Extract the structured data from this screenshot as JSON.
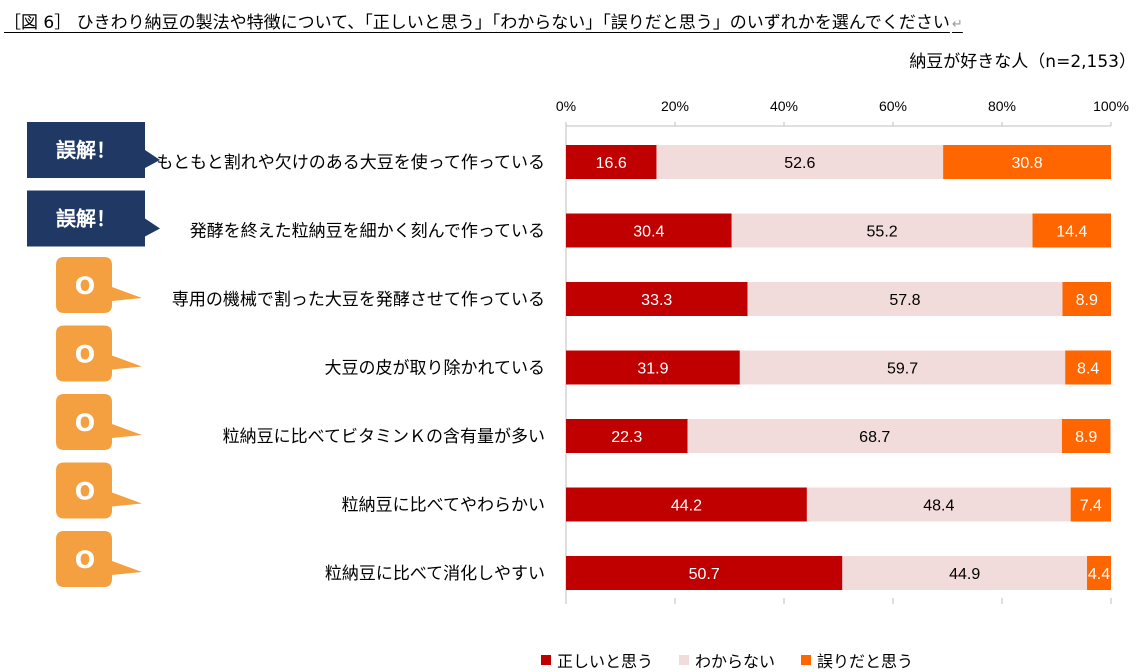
{
  "title": "［図 6］ ひきわり納豆の製法や特徴について、「正しいと思う」「わからない」「誤りだと思う」のいずれかを選んでください",
  "return_mark": "↵",
  "sample_label": "納豆が好きな人（n=2,153）",
  "badges": {
    "wrong_label": "誤解！",
    "correct_label": "O",
    "wrong_color": "#1F3864",
    "correct_color": "#F4A040"
  },
  "chart_data": {
    "type": "bar",
    "orientation": "horizontal",
    "stacked": true,
    "percent": true,
    "xlim": [
      0,
      100
    ],
    "x_ticks": [
      "0%",
      "20%",
      "40%",
      "60%",
      "80%",
      "100%"
    ],
    "x_tick_values": [
      0,
      20,
      40,
      60,
      80,
      100
    ],
    "grid": false,
    "legend_position": "bottom",
    "categories": [
      "もともと割れや欠けのある大豆を使って作っている",
      "発酵を終えた粒納豆を細かく刻んで作っている",
      "専用の機械で割った大豆を発酵させて作っている",
      "大豆の皮が取り除かれている",
      "粒納豆に比べてビタミンＫの含有量が多い",
      "粒納豆に比べてやわらかい",
      "粒納豆に比べて消化しやすい"
    ],
    "badges": [
      "wrong",
      "wrong",
      "correct",
      "correct",
      "correct",
      "correct",
      "correct"
    ],
    "series": [
      {
        "name": "正しいと思う",
        "color": "#C00000",
        "label_color": "#ffffff",
        "values": [
          16.6,
          30.4,
          33.3,
          31.9,
          22.3,
          44.2,
          50.7
        ]
      },
      {
        "name": "わからない",
        "color": "#F2DCDB",
        "label_color": "#000000",
        "values": [
          52.6,
          55.2,
          57.8,
          59.7,
          68.7,
          48.4,
          44.9
        ]
      },
      {
        "name": "誤りだと思う",
        "color": "#FF6600",
        "label_color": "#ffffff",
        "values": [
          30.8,
          14.4,
          8.9,
          8.4,
          8.9,
          7.4,
          4.4
        ]
      }
    ]
  }
}
